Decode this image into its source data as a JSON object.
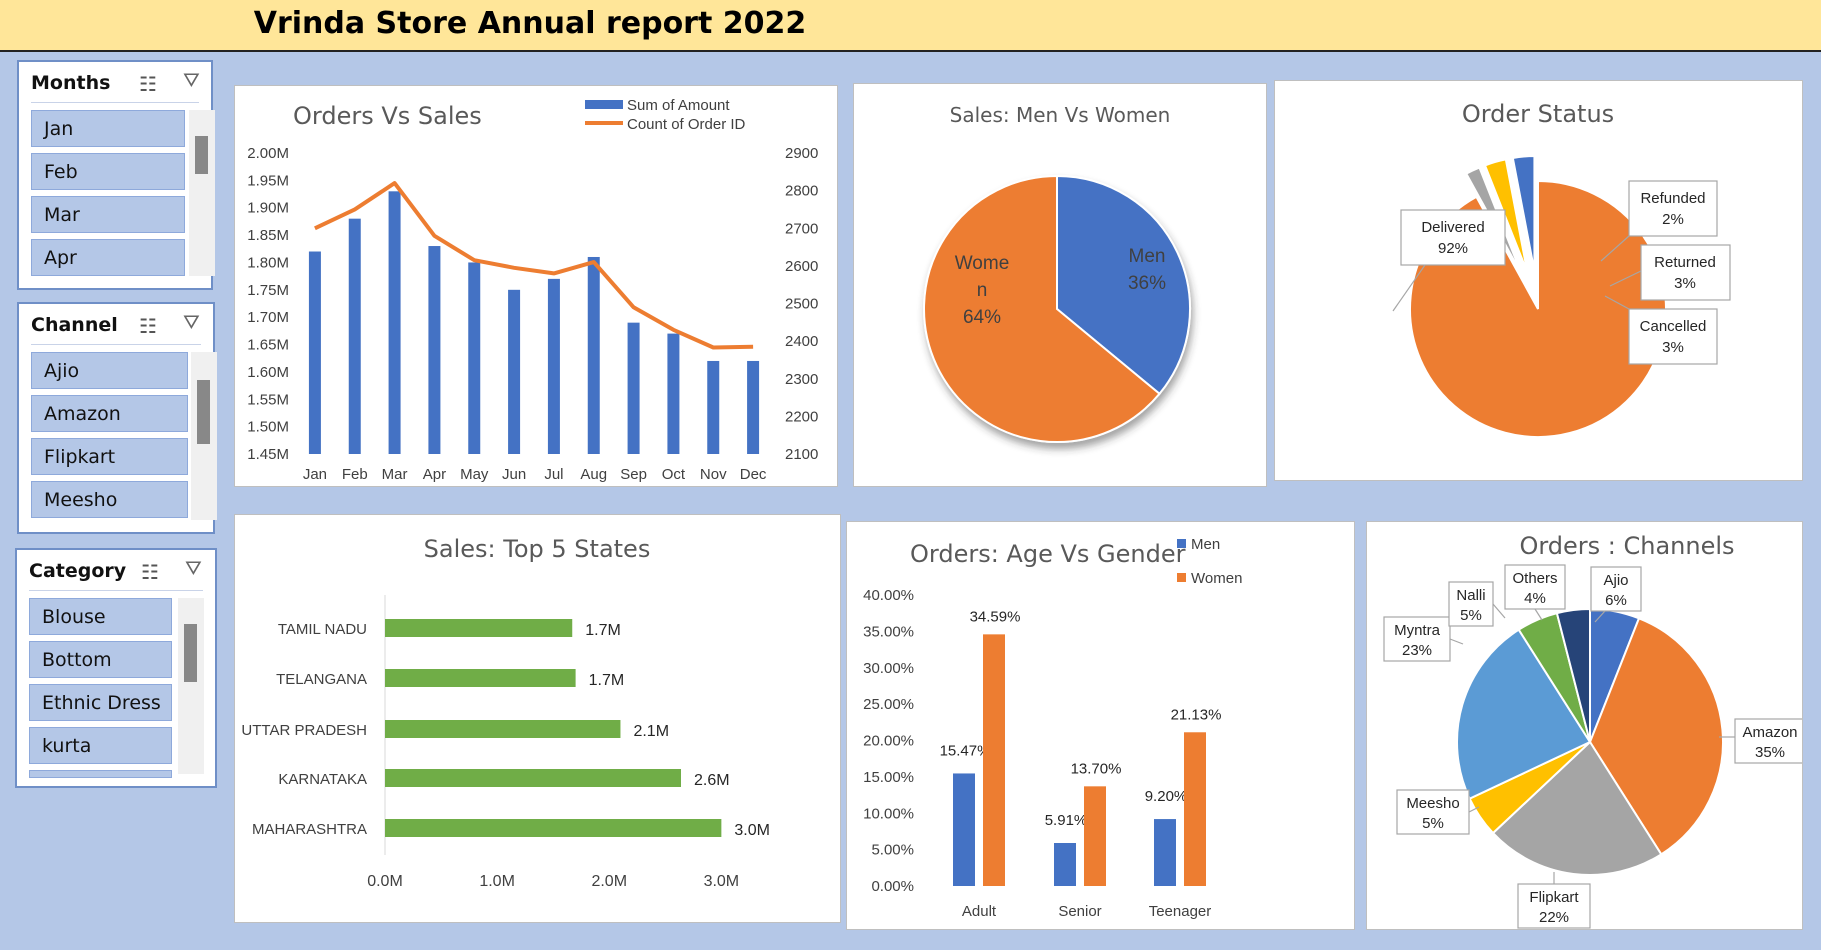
{
  "title": "Vrinda Store Annual report 2022",
  "slicers": {
    "months": {
      "label": "Months",
      "items": [
        "Jan",
        "Feb",
        "Mar",
        "Apr"
      ]
    },
    "channel": {
      "label": "Channel",
      "items": [
        "Ajio",
        "Amazon",
        "Flipkart",
        "Meesho"
      ]
    },
    "category": {
      "label": "Category",
      "items": [
        "Blouse",
        "Bottom",
        "Ethnic Dress",
        "kurta"
      ]
    }
  },
  "colors": {
    "blue": "#4472c4",
    "orange": "#ed7d31",
    "gray": "#a5a5a5",
    "yellow": "#ffc000",
    "lightblue": "#5b9bd5",
    "green": "#70ad47",
    "navy": "#264478"
  },
  "chart_data": [
    {
      "id": "orders_vs_sales",
      "type": "bar+line",
      "title": "Orders Vs Sales",
      "categories": [
        "Jan",
        "Feb",
        "Mar",
        "Apr",
        "May",
        "Jun",
        "Jul",
        "Aug",
        "Sep",
        "Oct",
        "Nov",
        "Dec"
      ],
      "series": [
        {
          "name": "Sum of Amount",
          "type": "bar",
          "axis": "left",
          "values": [
            1.82,
            1.88,
            1.93,
            1.83,
            1.8,
            1.75,
            1.77,
            1.81,
            1.69,
            1.67,
            1.62,
            1.62
          ]
        },
        {
          "name": "Count of Order ID",
          "type": "line",
          "axis": "right",
          "values": [
            2700,
            2750,
            2820,
            2680,
            2615,
            2595,
            2580,
            2610,
            2490,
            2430,
            2383,
            2385
          ]
        }
      ],
      "left_ticks": [
        "2.00M",
        "1.95M",
        "1.90M",
        "1.85M",
        "1.80M",
        "1.75M",
        "1.70M",
        "1.65M",
        "1.60M",
        "1.55M",
        "1.50M",
        "1.45M"
      ],
      "right_ticks": [
        "2900",
        "2800",
        "2700",
        "2600",
        "2500",
        "2400",
        "2300",
        "2200",
        "2100"
      ],
      "ylim_left": [
        1.45,
        2.0
      ],
      "ylim_right": [
        2100,
        2900
      ],
      "legend": "top-right"
    },
    {
      "id": "men_vs_women",
      "type": "pie",
      "title": "Sales: Men Vs Women",
      "slices": [
        {
          "label_lines": [
            "Men",
            "36%"
          ],
          "value": 36,
          "color": "#4472c4"
        },
        {
          "label_lines": [
            "Wome",
            "n",
            "64%"
          ],
          "value": 64,
          "color": "#ed7d31"
        }
      ]
    },
    {
      "id": "order_status",
      "type": "pie",
      "title": "Order Status",
      "slices": [
        {
          "label_lines": [
            "Delivered",
            "92%"
          ],
          "value": 92,
          "color": "#ed7d31"
        },
        {
          "label_lines": [
            "Refunded",
            "2%"
          ],
          "value": 2,
          "color": "#a5a5a5"
        },
        {
          "label_lines": [
            "Returned",
            "3%"
          ],
          "value": 3,
          "color": "#ffc000"
        },
        {
          "label_lines": [
            "Cancelled",
            "3%"
          ],
          "value": 3,
          "color": "#4472c4"
        }
      ]
    },
    {
      "id": "top5_states",
      "type": "bar",
      "orientation": "horizontal",
      "title": "Sales: Top 5 States",
      "categories": [
        "TAMIL NADU",
        "TELANGANA",
        "UTTAR PRADESH",
        "KARNATAKA",
        "MAHARASHTRA"
      ],
      "values": [
        1.67,
        1.7,
        2.1,
        2.64,
        3.0
      ],
      "data_labels": [
        "1.7M",
        "1.7M",
        "2.1M",
        "2.6M",
        "3.0M"
      ],
      "x_ticks": [
        "0.0M",
        "1.0M",
        "2.0M",
        "3.0M"
      ],
      "xlim": [
        0,
        3.3
      ]
    },
    {
      "id": "age_vs_gender",
      "type": "bar",
      "title": "Orders: Age Vs Gender",
      "categories": [
        "Adult",
        "Senior",
        "Teenager"
      ],
      "series": [
        {
          "name": "Men",
          "values": [
            15.47,
            5.91,
            9.2
          ],
          "labels": [
            "15.47%",
            "5.91%",
            "9.20%"
          ]
        },
        {
          "name": "Women",
          "values": [
            34.59,
            13.7,
            21.13
          ],
          "labels": [
            "34.59%",
            "13.70%",
            "21.13%"
          ]
        }
      ],
      "y_ticks": [
        "40.00%",
        "35.00%",
        "30.00%",
        "25.00%",
        "20.00%",
        "15.00%",
        "10.00%",
        "5.00%",
        "0.00%"
      ],
      "ylim": [
        0,
        40
      ],
      "legend": "top-right"
    },
    {
      "id": "orders_channels",
      "type": "pie",
      "title": "Orders : Channels",
      "slices": [
        {
          "label_lines": [
            "Ajio",
            "6%"
          ],
          "value": 6,
          "color": "#4472c4"
        },
        {
          "label_lines": [
            "Amazon",
            "35%"
          ],
          "value": 35,
          "color": "#ed7d31"
        },
        {
          "label_lines": [
            "Flipkart",
            "22%"
          ],
          "value": 22,
          "color": "#a5a5a5"
        },
        {
          "label_lines": [
            "Meesho",
            "5%"
          ],
          "value": 5,
          "color": "#ffc000"
        },
        {
          "label_lines": [
            "Myntra",
            "23%"
          ],
          "value": 23,
          "color": "#5b9bd5"
        },
        {
          "label_lines": [
            "Nalli",
            "5%"
          ],
          "value": 5,
          "color": "#70ad47"
        },
        {
          "label_lines": [
            "Others",
            "4%"
          ],
          "value": 4,
          "color": "#264478"
        }
      ]
    }
  ]
}
